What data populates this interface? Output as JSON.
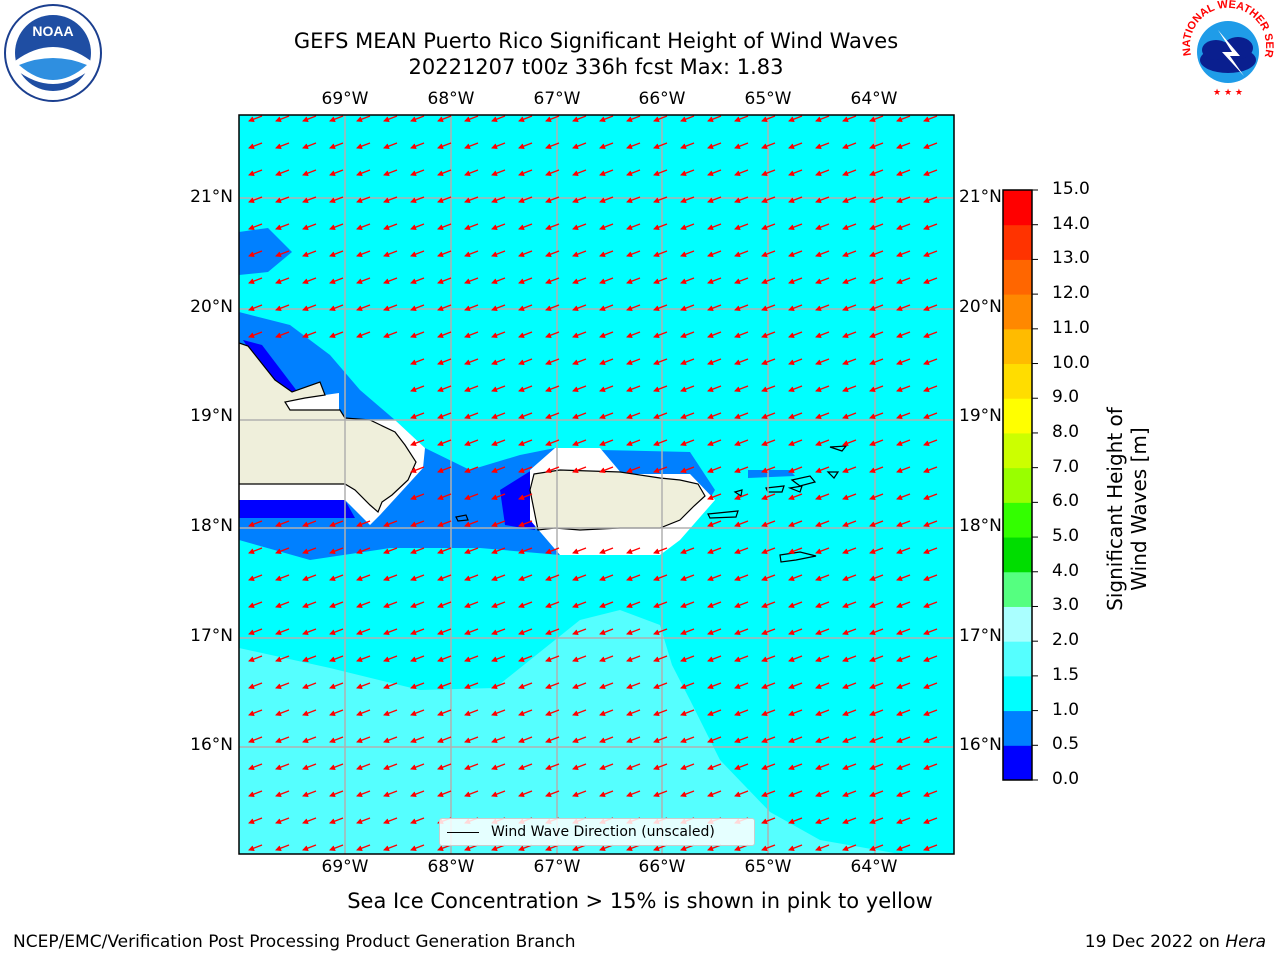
{
  "title": {
    "line1": "GEFS MEAN Puerto Rico Significant Height of Wind Waves",
    "line2": "20221207 t00z 336h fcst   Max: 1.83"
  },
  "logos": {
    "left": {
      "text": "NOAA",
      "ring_text": "NATIONAL OCEANIC AND ATMOSPHERIC ADMINISTRATION · U.S. DEPARTMENT OF COMMERCE"
    },
    "right": {
      "ring_text": "NATIONAL WEATHER SERVICE"
    }
  },
  "map": {
    "lon_labels": [
      "69°W",
      "68°W",
      "67°W",
      "66°W",
      "65°W",
      "64°W"
    ],
    "lat_labels": [
      "21°N",
      "20°N",
      "19°N",
      "18°N",
      "17°N",
      "16°N"
    ],
    "legend": "Wind Wave Direction (unscaled)",
    "arrow_color": "#ff0000",
    "land_color": "#efefdb"
  },
  "colorbar": {
    "ticks": [
      "15.0",
      "14.0",
      "13.0",
      "12.0",
      "11.0",
      "10.0",
      "9.0",
      "8.0",
      "7.0",
      "6.0",
      "5.0",
      "4.0",
      "3.0",
      "2.0",
      "1.5",
      "1.0",
      "0.5",
      "0.0"
    ],
    "colors": [
      "#0000ff",
      "#0080ff",
      "#00ffff",
      "#55ffff",
      "#aaffff",
      "#55ff80",
      "#00dd00",
      "#33ff00",
      "#99ff00",
      "#ccff00",
      "#ffff00",
      "#ffdd00",
      "#ffbb00",
      "#ff8800",
      "#ff6600",
      "#ff3300",
      "#ff0000"
    ],
    "label": "Significant Height of Wind Waves [m]"
  },
  "subtitle": "Sea Ice Concentration > 15% is shown in pink to yellow",
  "footer": {
    "left": "NCEP/EMC/Verification Post Processing Product Generation Branch",
    "right_prefix": "19 Dec 2022 on ",
    "right_host": "Hera"
  }
}
